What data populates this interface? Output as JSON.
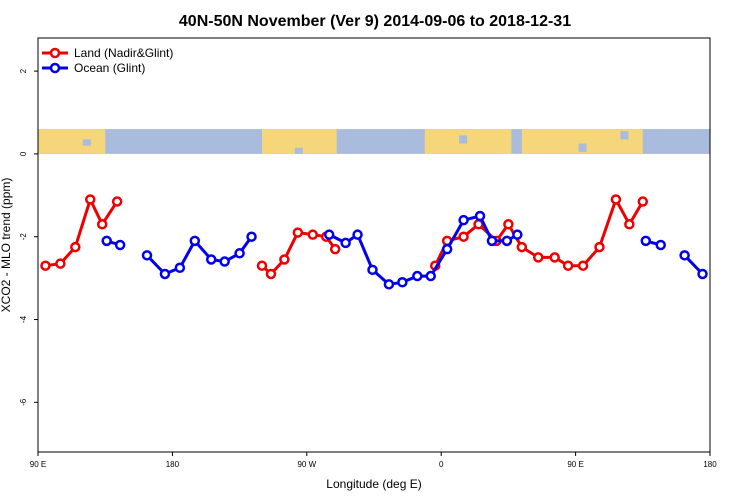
{
  "chart_data": {
    "type": "line",
    "title": "40N-50N November (Ver 9)   2014-09-06 to 2018-12-31",
    "xlabel": "Longitude (deg E)",
    "ylabel": "XCO2 - MLO trend (ppm)",
    "xlim": [
      90,
      540
    ],
    "ylim": [
      -7.2,
      2.8
    ],
    "x_ticks": [
      {
        "value": 90,
        "label": "90 E"
      },
      {
        "value": 180,
        "label": "180"
      },
      {
        "value": 270,
        "label": "90 W"
      },
      {
        "value": 360,
        "label": "0"
      },
      {
        "value": 450,
        "label": "90 E"
      },
      {
        "value": 540,
        "label": "180"
      }
    ],
    "y_ticks": [
      {
        "value": 2,
        "label": "2"
      },
      {
        "value": 0,
        "label": "0"
      },
      {
        "value": -2,
        "label": "-2"
      },
      {
        "value": -4,
        "label": "-4"
      },
      {
        "value": -6,
        "label": "-6"
      }
    ],
    "map_strip": {
      "y_range": [
        0,
        0.6
      ],
      "ocean_color": "#A9BCDD",
      "land_color": "#F5D67A"
    },
    "legend": {
      "position": "top-left"
    },
    "series": [
      {
        "name": "Land (Nadir&Glint)",
        "color": "#EE0000",
        "segments": [
          [
            [
              95,
              -2.7
            ],
            [
              105,
              -2.65
            ],
            [
              115,
              -2.25
            ],
            [
              125,
              -1.1
            ],
            [
              133,
              -1.7
            ],
            [
              143,
              -1.15
            ]
          ],
          [
            [
              240,
              -2.7
            ],
            [
              246,
              -2.9
            ],
            [
              255,
              -2.55
            ],
            [
              264,
              -1.9
            ],
            [
              274,
              -1.95
            ],
            [
              283,
              -2.0
            ],
            [
              289,
              -2.3
            ]
          ],
          [
            [
              356,
              -2.7
            ],
            [
              364,
              -2.1
            ],
            [
              375,
              -2.0
            ],
            [
              385,
              -1.7
            ],
            [
              397,
              -2.1
            ],
            [
              405,
              -1.7
            ],
            [
              414,
              -2.25
            ],
            [
              425,
              -2.5
            ],
            [
              436,
              -2.5
            ],
            [
              445,
              -2.7
            ],
            [
              455,
              -2.7
            ],
            [
              466,
              -2.25
            ],
            [
              477,
              -1.1
            ],
            [
              486,
              -1.7
            ],
            [
              495,
              -1.15
            ]
          ]
        ]
      },
      {
        "name": "Ocean (Glint)",
        "color": "#0000EE",
        "segments": [
          [
            [
              136,
              -2.1
            ],
            [
              145,
              -2.2
            ]
          ],
          [
            [
              163,
              -2.45
            ],
            [
              175,
              -2.9
            ],
            [
              185,
              -2.75
            ],
            [
              195,
              -2.1
            ],
            [
              206,
              -2.55
            ],
            [
              215,
              -2.6
            ],
            [
              225,
              -2.4
            ],
            [
              233,
              -2.0
            ]
          ],
          [
            [
              285,
              -1.95
            ],
            [
              296,
              -2.15
            ],
            [
              304,
              -1.95
            ],
            [
              314,
              -2.8
            ],
            [
              325,
              -3.15
            ],
            [
              334,
              -3.1
            ],
            [
              344,
              -2.95
            ],
            [
              353,
              -2.95
            ],
            [
              364,
              -2.3
            ],
            [
              375,
              -1.6
            ],
            [
              386,
              -1.5
            ],
            [
              394,
              -2.1
            ],
            [
              404,
              -2.1
            ],
            [
              411,
              -1.95
            ]
          ],
          [
            [
              497,
              -2.1
            ],
            [
              507,
              -2.2
            ]
          ],
          [
            [
              523,
              -2.45
            ],
            [
              535,
              -2.9
            ]
          ]
        ]
      }
    ]
  }
}
